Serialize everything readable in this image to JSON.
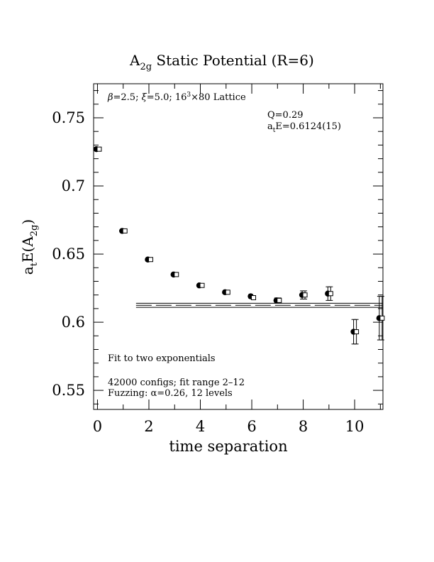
{
  "chart_data": {
    "type": "scatter",
    "title_main": "A",
    "title_sub": "2g",
    "title_rest": " Static Potential (R=6)",
    "xlabel": "time separation",
    "ylabel_main": "a",
    "ylabel_sub1": "t",
    "ylabel_mid": "E(A",
    "ylabel_sub2": "2g",
    "ylabel_end": ")",
    "xlim": [
      -0.15,
      11.1
    ],
    "ylim": [
      0.536,
      0.775
    ],
    "x_ticks": [
      0,
      2,
      4,
      6,
      8,
      10
    ],
    "y_ticks": [
      0.55,
      0.6,
      0.65,
      0.7,
      0.75
    ],
    "y_tick_labels": [
      "0.55",
      "0.6",
      "0.65",
      "0.7",
      "0.75"
    ],
    "annotations": {
      "lattice_pre": "=2.5; ",
      "lattice_mid": "=5.0; 16",
      "lattice_sup": "3",
      "lattice_post": "×80 Lattice",
      "q_value": "Q=0.29",
      "energy_main": "a",
      "energy_sub": "t",
      "energy_rest": "E=0.6124(15)",
      "fit_note": "Fit to two exponentials",
      "configs": "42000 configs; fit range 2–12",
      "fuzzing": "Fuzzing: α=0.26, 12 levels"
    },
    "series": [
      {
        "marker": "filled-circle",
        "x": [
          0,
          1,
          2,
          3,
          4,
          5,
          6,
          7,
          8,
          9,
          10,
          11
        ],
        "y": [
          0.727,
          0.667,
          0.646,
          0.635,
          0.627,
          0.622,
          0.619,
          0.616,
          0.62,
          0.621,
          0.593,
          0.603
        ],
        "err": [
          0.0008,
          0.0008,
          0.001,
          0.001,
          0.001,
          0.0012,
          0.0015,
          0.0018,
          0.003,
          0.005,
          0.009,
          0.016
        ]
      },
      {
        "marker": "open-square",
        "x": [
          0,
          1,
          2,
          3,
          4,
          5,
          6,
          7,
          8,
          9,
          10,
          11
        ],
        "y": [
          0.727,
          0.667,
          0.646,
          0.635,
          0.627,
          0.622,
          0.618,
          0.616,
          0.62,
          0.621,
          0.593,
          0.603
        ],
        "err": [
          0.0008,
          0.0008,
          0.001,
          0.001,
          0.001,
          0.0012,
          0.0015,
          0.0018,
          0.003,
          0.005,
          0.009,
          0.016
        ]
      }
    ],
    "fit_band": {
      "x_start": 1.5,
      "x_end": 11.1,
      "center": 0.6124,
      "error": 0.0015
    }
  }
}
